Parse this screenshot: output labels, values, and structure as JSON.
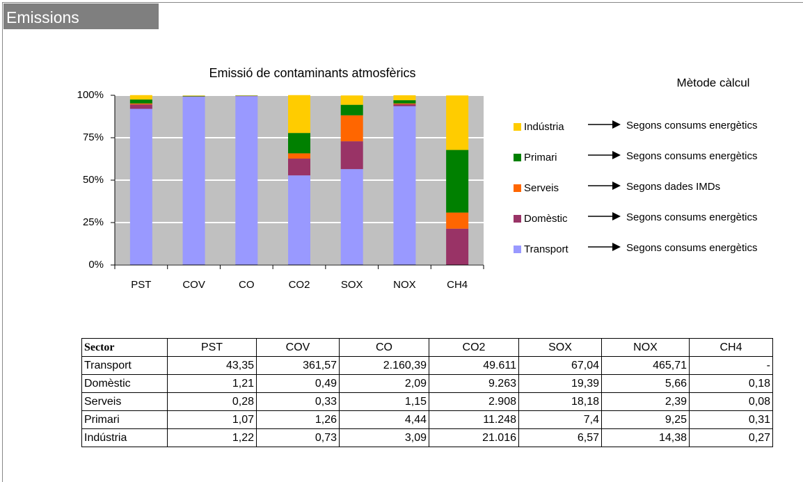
{
  "header": {
    "title": "Emissions"
  },
  "chart_data": {
    "type": "bar",
    "stacked": true,
    "title": "Emissió de contaminants atmosfèrics",
    "legend_title": "Mètode càlcul",
    "categories": [
      "PST",
      "COV",
      "CO",
      "CO2",
      "SOX",
      "NOX",
      "CH4"
    ],
    "series": [
      {
        "name": "Transport",
        "color": "#9999ff",
        "method": "Segons consums energètics",
        "values": [
          92.0,
          99.2,
          99.5,
          52.8,
          56.5,
          93.6,
          0
        ]
      },
      {
        "name": "Domèstic",
        "color": "#993366",
        "method": "Segons consums energètics",
        "values": [
          2.6,
          0.1,
          0.1,
          9.9,
          16.4,
          1.1,
          21.4
        ]
      },
      {
        "name": "Serveis",
        "color": "#ff6600",
        "method": "Segons dades IMDs",
        "values": [
          0.6,
          0.1,
          0.1,
          3.1,
          15.3,
          0.5,
          9.5
        ]
      },
      {
        "name": "Primari",
        "color": "#008000",
        "method": "Segons consums energètics",
        "values": [
          2.3,
          0.3,
          0.2,
          12.0,
          6.2,
          1.9,
          36.9
        ]
      },
      {
        "name": "Indústria",
        "color": "#ffcc00",
        "method": "Segons consums energètics",
        "values": [
          2.6,
          0.2,
          0.1,
          22.3,
          5.5,
          2.9,
          32.1
        ]
      }
    ],
    "ylim": [
      0,
      100
    ],
    "yticks": [
      {
        "value": 0,
        "label": "0%"
      },
      {
        "value": 25,
        "label": "25%"
      },
      {
        "value": 50,
        "label": "50%"
      },
      {
        "value": 75,
        "label": "75%"
      },
      {
        "value": 100,
        "label": "100%"
      }
    ],
    "grid": true
  },
  "table": {
    "columns": [
      "Sector",
      "PST",
      "COV",
      "CO",
      "CO2",
      "SOX",
      "NOX",
      "CH4"
    ],
    "rows": [
      [
        "Transport",
        "43,35",
        "361,57",
        "2.160,39",
        "49.611",
        "67,04",
        "465,71",
        "-"
      ],
      [
        "Domèstic",
        "1,21",
        "0,49",
        "2,09",
        "9.263",
        "19,39",
        "5,66",
        "0,18"
      ],
      [
        "Serveis",
        "0,28",
        "0,33",
        "1,15",
        "2.908",
        "18,18",
        "2,39",
        "0,08"
      ],
      [
        "Primari",
        "1,07",
        "1,26",
        "4,44",
        "11.248",
        "7,4",
        "9,25",
        "0,31"
      ],
      [
        "Indústria",
        "1,22",
        "0,73",
        "3,09",
        "21.016",
        "6,57",
        "14,38",
        "0,27"
      ]
    ]
  }
}
